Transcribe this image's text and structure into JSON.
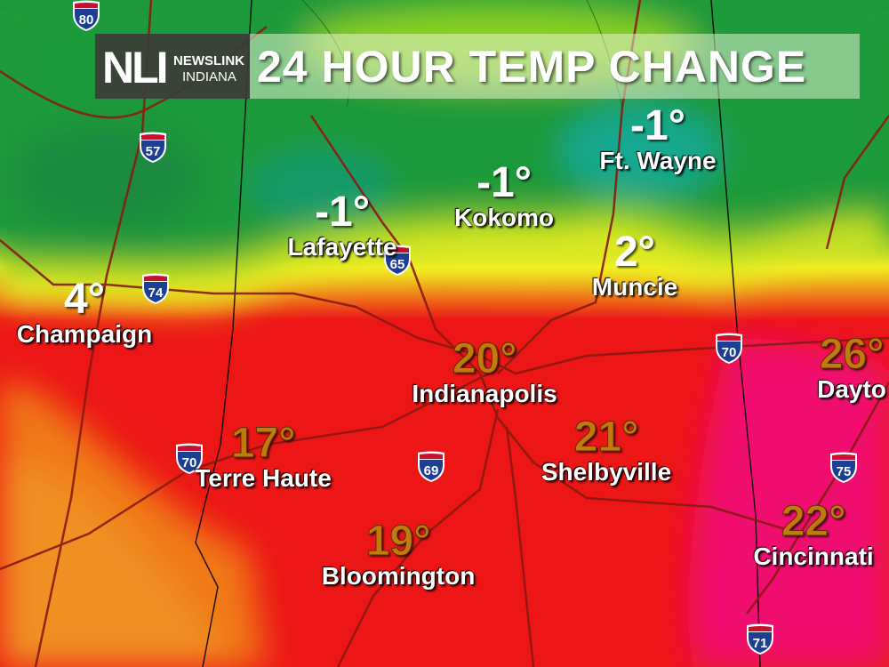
{
  "header": {
    "logo_mark": "NLI",
    "logo_line1": "NEWSLINK",
    "logo_line2": "INDIANA",
    "title": "24 HOUR TEMP CHANGE"
  },
  "cities": [
    {
      "name": "Champaign",
      "value": "4°",
      "tone": "cold"
    },
    {
      "name": "Lafayette",
      "value": "-1°",
      "tone": "cold"
    },
    {
      "name": "Kokomo",
      "value": "-1°",
      "tone": "cold"
    },
    {
      "name": "Ft. Wayne",
      "value": "-1°",
      "tone": "cold"
    },
    {
      "name": "Muncie",
      "value": "2°",
      "tone": "cold"
    },
    {
      "name": "Indianapolis",
      "value": "20°",
      "tone": "warm"
    },
    {
      "name": "Terre Haute",
      "value": "17°",
      "tone": "warm"
    },
    {
      "name": "Shelbyville",
      "value": "21°",
      "tone": "warm"
    },
    {
      "name": "Bloomington",
      "value": "19°",
      "tone": "warm"
    },
    {
      "name": "Dayto",
      "value": "26°",
      "tone": "warm"
    },
    {
      "name": "Cincinnati",
      "value": "22°",
      "tone": "warm"
    }
  ],
  "interstates": [
    "80",
    "57",
    "74",
    "65",
    "70",
    "70",
    "69",
    "75",
    "71"
  ],
  "colors": {
    "cold": "#1a9a3a",
    "teal": "#18a88a",
    "yellow": "#f0f020",
    "hot": "#f01414",
    "orange": "#f07818",
    "magenta": "#f01070",
    "warm_text": "#c27a0e"
  }
}
